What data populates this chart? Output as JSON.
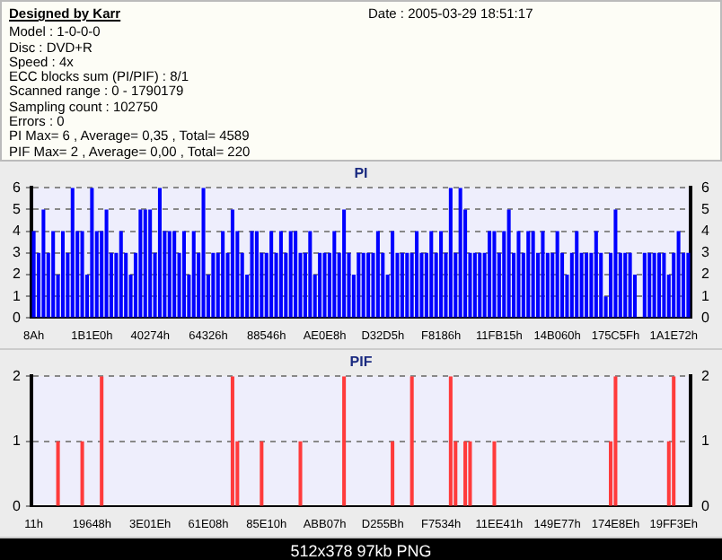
{
  "chart_data": [
    {
      "type": "bar",
      "title": "PI",
      "annotations": [
        "Designed by Karr",
        "Date : 2005-03-29 18:51:17",
        "Model : 1-0-0-0",
        "Disc : DVD+R",
        "Speed : 4x",
        "ECC blocks sum (PI/PIF) : 8/1",
        "Scanned range : 0 - 1790179",
        "Sampling count : 102750",
        "Errors : 0",
        "PI Max= 6 , Average= 0,35 , Total= 4589",
        "PIF Max= 2 , Average= 0,00 , Total= 220"
      ],
      "categories": [
        "8Ah",
        null,
        null,
        null,
        null,
        null,
        null,
        null,
        null,
        null,
        null,
        null,
        "1B1E0h",
        null,
        null,
        null,
        null,
        null,
        null,
        null,
        null,
        null,
        null,
        null,
        "40274h",
        null,
        null,
        null,
        null,
        null,
        null,
        null,
        null,
        null,
        null,
        null,
        "64326h",
        null,
        null,
        null,
        null,
        null,
        null,
        null,
        null,
        null,
        null,
        null,
        "88546h",
        null,
        null,
        null,
        null,
        null,
        null,
        null,
        null,
        null,
        null,
        null,
        "AE0E8h",
        null,
        null,
        null,
        null,
        null,
        null,
        null,
        null,
        null,
        null,
        null,
        "D32D5h",
        null,
        null,
        null,
        null,
        null,
        null,
        null,
        null,
        null,
        null,
        null,
        "F8186h",
        null,
        null,
        null,
        null,
        null,
        null,
        null,
        null,
        null,
        null,
        null,
        "11FB15h",
        null,
        null,
        null,
        null,
        null,
        null,
        null,
        null,
        null,
        null,
        null,
        "14B060h",
        null,
        null,
        null,
        null,
        null,
        null,
        null,
        null,
        null,
        null,
        null,
        "175C5Fh",
        null,
        null,
        null,
        null,
        null,
        null,
        null,
        null,
        null,
        null,
        null,
        "1A1E72h",
        null,
        null,
        null
      ],
      "values": [
        4,
        3,
        5,
        3,
        4,
        2,
        4,
        3,
        6,
        4,
        4,
        2,
        6,
        4,
        4,
        5,
        3,
        3,
        4,
        3,
        2,
        3,
        5,
        5,
        5,
        3,
        6,
        4,
        4,
        4,
        3,
        4,
        2,
        4,
        3,
        6,
        2,
        3,
        3,
        4,
        3,
        5,
        4,
        3,
        2,
        4,
        4,
        3,
        3,
        4,
        3,
        4,
        3,
        4,
        4,
        3,
        3,
        4,
        2,
        3,
        3,
        3,
        4,
        3,
        5,
        3,
        2,
        3,
        3,
        3,
        3,
        4,
        3,
        2,
        4,
        3,
        3,
        3,
        3,
        4,
        3,
        3,
        4,
        3,
        4,
        3,
        6,
        3,
        6,
        5,
        3,
        3,
        3,
        3,
        4,
        4,
        3,
        4,
        5,
        3,
        4,
        3,
        4,
        4,
        3,
        4,
        3,
        3,
        4,
        3,
        2,
        3,
        4,
        3,
        3,
        3,
        4,
        3,
        1,
        3,
        5,
        3,
        3,
        3,
        2,
        0,
        3,
        3,
        3,
        3,
        3,
        2,
        3,
        4,
        3,
        3
      ],
      "color": "#0000ff",
      "ylim": [
        0,
        6
      ],
      "yticks": [
        0,
        1,
        2,
        3,
        4,
        5,
        6
      ],
      "y2lim": [
        0,
        6
      ],
      "y2ticks": [
        0,
        1,
        2,
        3,
        4,
        5,
        6
      ],
      "grid": "y"
    },
    {
      "type": "bar",
      "title": "PIF",
      "annotations": [
        "512x378 97kb PNG"
      ],
      "categories": [
        "11h",
        null,
        null,
        null,
        null,
        null,
        null,
        null,
        null,
        null,
        null,
        null,
        "19648h",
        null,
        null,
        null,
        null,
        null,
        null,
        null,
        null,
        null,
        null,
        null,
        "3E01Eh",
        null,
        null,
        null,
        null,
        null,
        null,
        null,
        null,
        null,
        null,
        null,
        "61E08h",
        null,
        null,
        null,
        null,
        null,
        null,
        null,
        null,
        null,
        null,
        null,
        "85E10h",
        null,
        null,
        null,
        null,
        null,
        null,
        null,
        null,
        null,
        null,
        null,
        "ABB07h",
        null,
        null,
        null,
        null,
        null,
        null,
        null,
        null,
        null,
        null,
        null,
        "D255Bh",
        null,
        null,
        null,
        null,
        null,
        null,
        null,
        null,
        null,
        null,
        null,
        "F7534h",
        null,
        null,
        null,
        null,
        null,
        null,
        null,
        null,
        null,
        null,
        null,
        "11EE41h",
        null,
        null,
        null,
        null,
        null,
        null,
        null,
        null,
        null,
        null,
        null,
        "149E77h",
        null,
        null,
        null,
        null,
        null,
        null,
        null,
        null,
        null,
        null,
        null,
        "174E8Eh",
        null,
        null,
        null,
        null,
        null,
        null,
        null,
        null,
        null,
        null,
        null,
        "19FF3Eh",
        null,
        null,
        null
      ],
      "values": [
        0,
        0,
        0,
        0,
        0,
        1,
        0,
        0,
        0,
        0,
        1,
        0,
        0,
        0,
        2,
        0,
        0,
        0,
        0,
        0,
        0,
        0,
        0,
        0,
        0,
        0,
        0,
        0,
        0,
        0,
        0,
        0,
        0,
        0,
        0,
        0,
        0,
        0,
        0,
        0,
        0,
        2,
        1,
        0,
        0,
        0,
        0,
        1,
        0,
        0,
        0,
        0,
        0,
        0,
        0,
        1,
        0,
        0,
        0,
        0,
        0,
        0,
        0,
        0,
        2,
        0,
        0,
        0,
        0,
        0,
        0,
        0,
        0,
        0,
        1,
        0,
        0,
        0,
        2,
        0,
        0,
        0,
        0,
        0,
        0,
        0,
        2,
        1,
        0,
        1,
        1,
        0,
        0,
        0,
        0,
        1,
        0,
        0,
        0,
        0,
        0,
        0,
        0,
        0,
        0,
        0,
        0,
        0,
        0,
        0,
        0,
        0,
        0,
        0,
        0,
        0,
        0,
        0,
        0,
        1,
        2,
        0,
        0,
        0,
        0,
        0,
        0,
        0,
        0,
        0,
        0,
        1,
        2,
        0,
        0,
        0
      ],
      "color": "#ff3b3b",
      "ylim": [
        0,
        2
      ],
      "yticks": [
        0,
        1,
        2
      ],
      "y2lim": [
        0,
        2
      ],
      "y2ticks": [
        0,
        1,
        2
      ],
      "grid": "y"
    }
  ]
}
